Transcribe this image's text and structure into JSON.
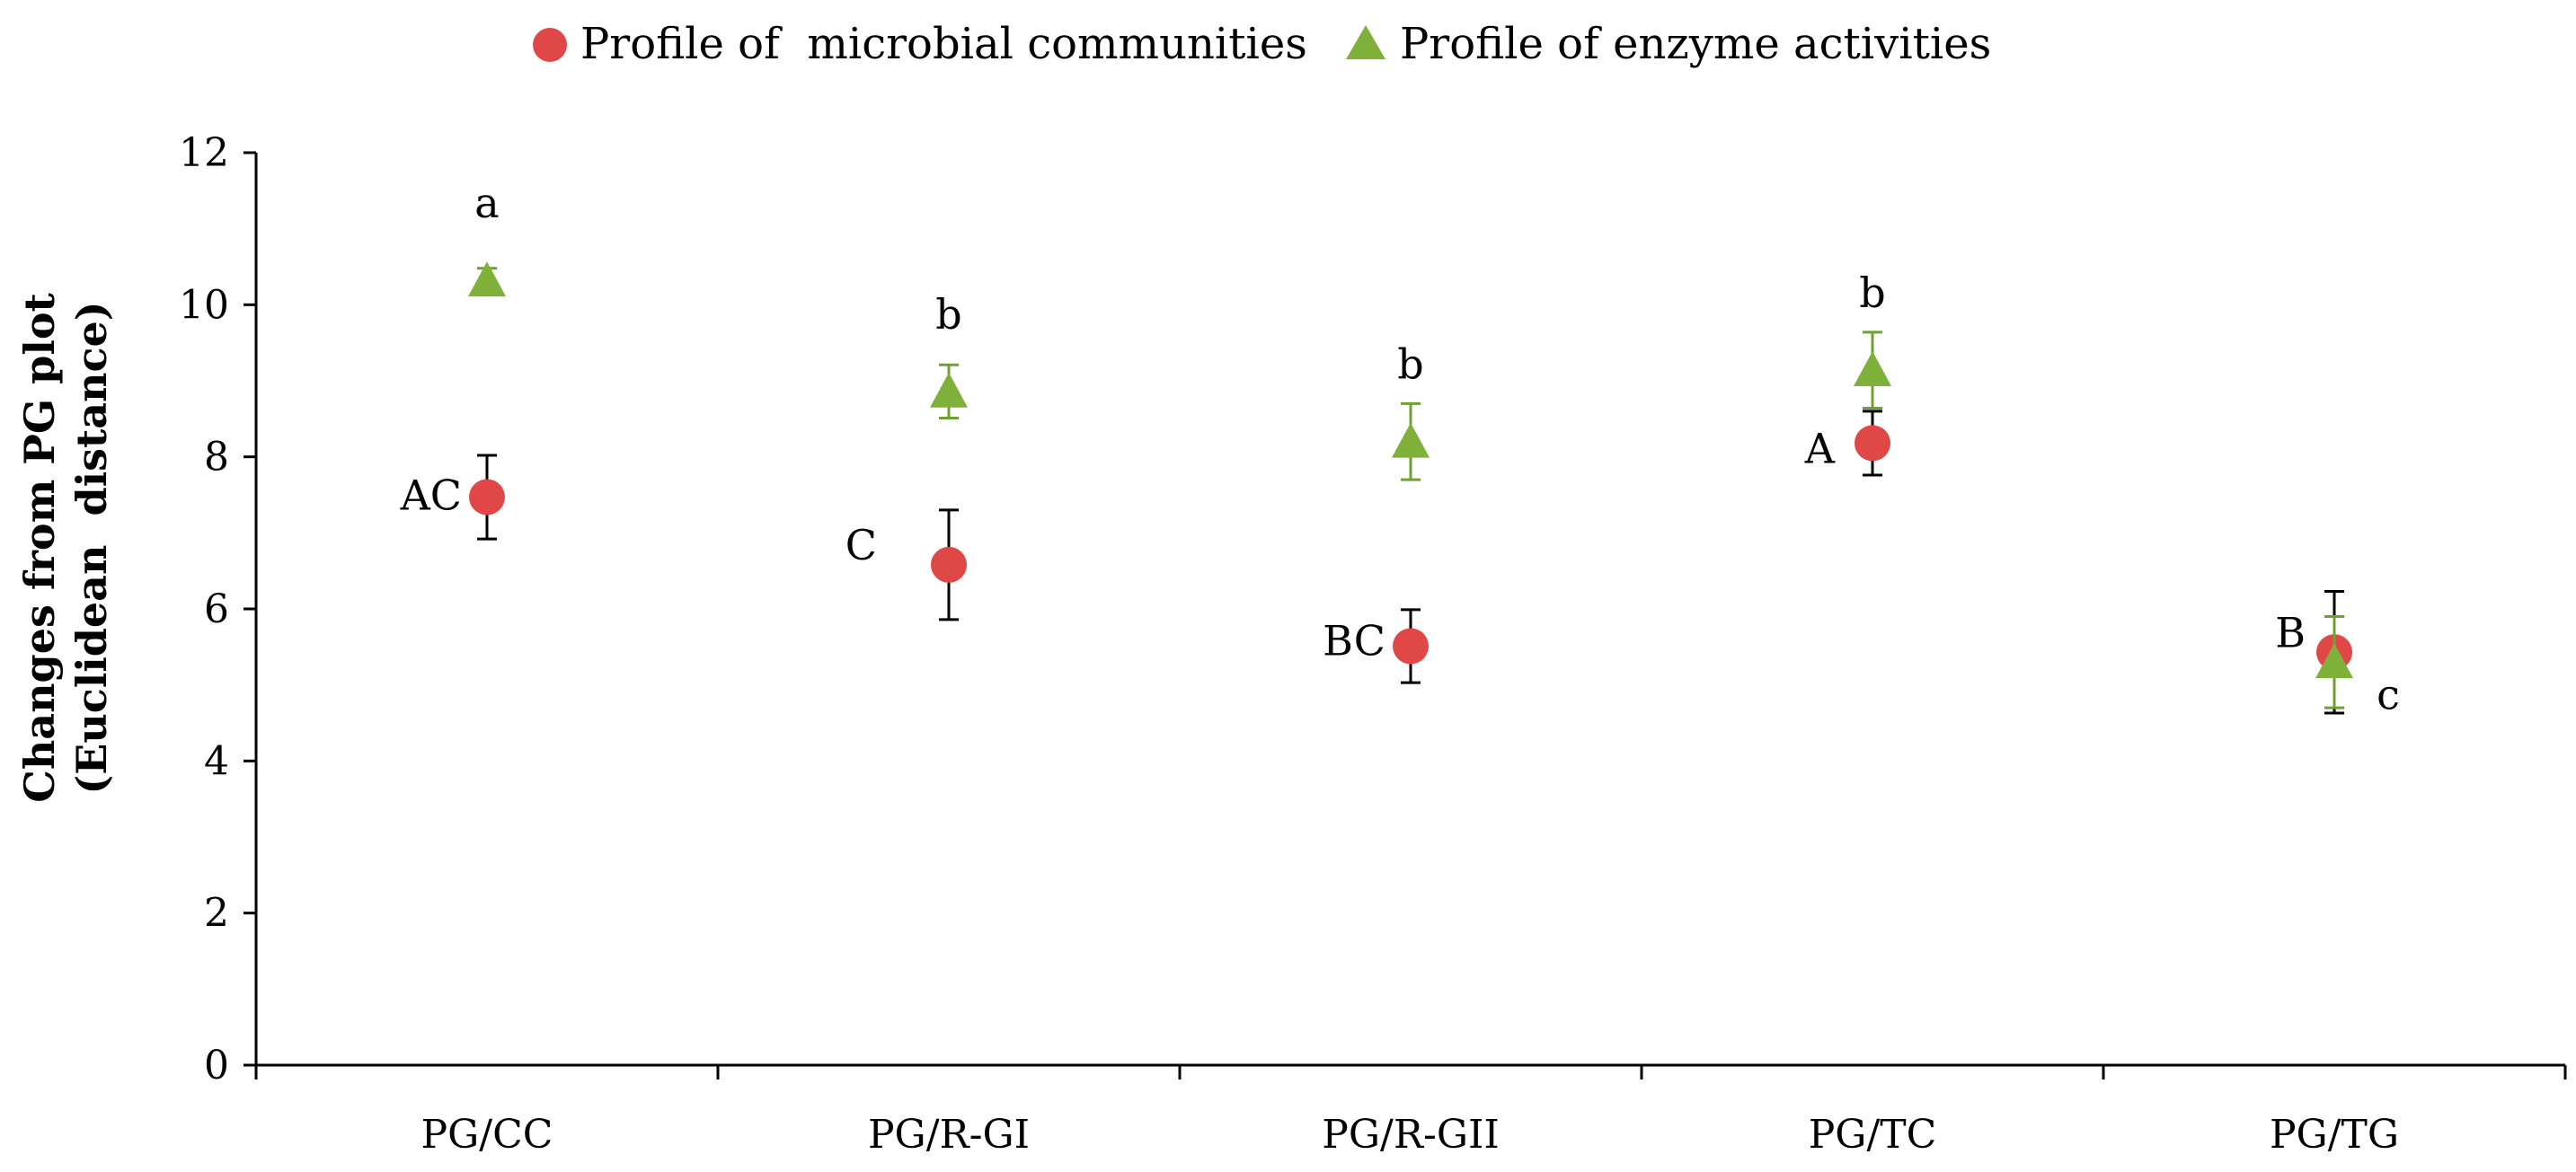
{
  "chart_data": {
    "type": "scatter",
    "title": "",
    "xlabel": "",
    "ylabel_lines": [
      "Changes from PG plot",
      "(Euclidean  distance)"
    ],
    "categories": [
      "PG/CC",
      "PG/R-GI",
      "PG/R-GII",
      "PG/TC",
      "PG/TG"
    ],
    "ylim": [
      0,
      12
    ],
    "yticks": [
      0,
      2,
      4,
      6,
      8,
      10,
      12
    ],
    "legend_position": "top-center",
    "series": [
      {
        "name": "Profile of  microbial communities",
        "marker": "circle",
        "color": "#e04848",
        "error_color": "#000000",
        "values": [
          7.47,
          6.58,
          5.51,
          8.18,
          5.43
        ],
        "errors": [
          0.55,
          0.72,
          0.48,
          0.42,
          0.8
        ],
        "significance": [
          "AC",
          "C",
          "BC",
          "A",
          "B"
        ]
      },
      {
        "name": "Profile of enzyme activities",
        "marker": "triangle",
        "color": "#7eb03a",
        "error_color": "#6fa132",
        "values": [
          10.32,
          8.86,
          8.2,
          9.14,
          5.3
        ],
        "errors": [
          0.16,
          0.35,
          0.5,
          0.5,
          0.6
        ],
        "significance": [
          "a",
          "b",
          "b",
          "b",
          "c"
        ]
      }
    ]
  }
}
